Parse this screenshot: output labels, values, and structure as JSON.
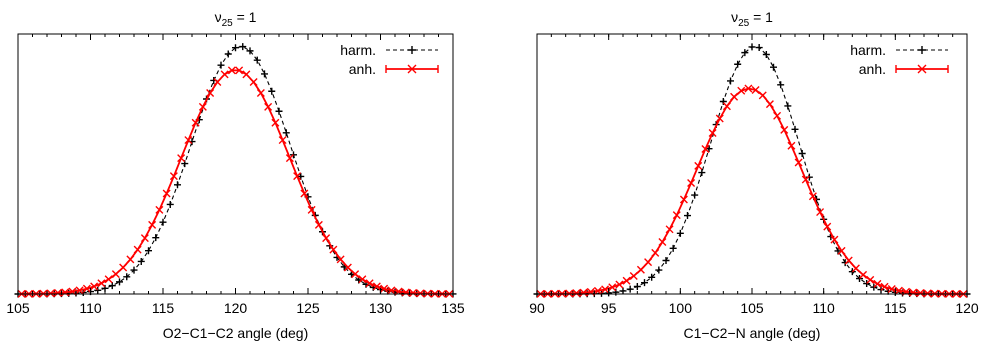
{
  "chart_data": [
    {
      "type": "scatter",
      "title_symbol": "ν",
      "title_subscript": "25",
      "title_suffix": " = 1",
      "xlabel": "O2−C1−C2 angle (deg)",
      "ylabel": "",
      "xlim": [
        105,
        135
      ],
      "ylim": [
        0,
        1.05
      ],
      "xticks": [
        "105",
        "110",
        "115",
        "120",
        "125",
        "130",
        "135"
      ],
      "yticks": [],
      "grid": false,
      "legend_position": "top-right",
      "series": [
        {
          "name": "harm.",
          "color": "#000000",
          "marker": "plus",
          "line": "dashed",
          "center": 120.35,
          "sigma": 3.4,
          "peak": 1.0,
          "x_start": 105.0,
          "x_step": 0.5,
          "x_count": 61
        },
        {
          "name": "anh.",
          "color": "#ff0000",
          "marker": "cross",
          "line": "solid",
          "center": 120.0,
          "sigma": 3.75,
          "peak": 0.905,
          "x_start": 105.25,
          "x_step": 0.5,
          "x_count": 60
        }
      ]
    },
    {
      "type": "scatter",
      "title_symbol": "ν",
      "title_subscript": "25",
      "title_suffix": " = 1",
      "xlabel": "C1−C2−N angle (deg)",
      "ylabel": "",
      "xlim": [
        90,
        120
      ],
      "ylim": [
        0,
        1.05
      ],
      "xticks": [
        "90",
        "95",
        "100",
        "105",
        "110",
        "115",
        "120"
      ],
      "yticks": [],
      "grid": false,
      "legend_position": "top-right",
      "series": [
        {
          "name": "harm.",
          "color": "#000000",
          "marker": "plus",
          "line": "dashed",
          "center": 105.2,
          "sigma": 3.1,
          "peak": 1.0,
          "x_start": 90.0,
          "x_step": 0.5,
          "x_count": 61
        },
        {
          "name": "anh.",
          "color": "#ff0000",
          "marker": "cross",
          "line": "solid",
          "center": 104.8,
          "sigma": 3.65,
          "peak": 0.83,
          "x_start": 90.25,
          "x_step": 0.5,
          "x_count": 60
        }
      ]
    }
  ]
}
